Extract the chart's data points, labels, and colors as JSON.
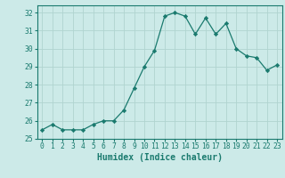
{
  "x": [
    0,
    1,
    2,
    3,
    4,
    5,
    6,
    7,
    8,
    9,
    10,
    11,
    12,
    13,
    14,
    15,
    16,
    17,
    18,
    19,
    20,
    21,
    22,
    23
  ],
  "y": [
    25.5,
    25.8,
    25.5,
    25.5,
    25.5,
    25.8,
    26.0,
    26.0,
    26.6,
    27.8,
    29.0,
    29.9,
    31.8,
    32.0,
    31.8,
    30.8,
    31.7,
    30.8,
    31.4,
    30.0,
    29.6,
    29.5,
    28.8,
    29.1
  ],
  "line_color": "#1a7a6e",
  "marker": "D",
  "marker_size": 2.2,
  "bg_color": "#cceae8",
  "grid_color": "#b0d4d0",
  "xlabel": "Humidex (Indice chaleur)",
  "ylim": [
    25,
    32.4
  ],
  "xlim": [
    -0.5,
    23.5
  ],
  "yticks": [
    25,
    26,
    27,
    28,
    29,
    30,
    31,
    32
  ],
  "xticks": [
    0,
    1,
    2,
    3,
    4,
    5,
    6,
    7,
    8,
    9,
    10,
    11,
    12,
    13,
    14,
    15,
    16,
    17,
    18,
    19,
    20,
    21,
    22,
    23
  ],
  "tick_label_fontsize": 5.8,
  "xlabel_fontsize": 7.0
}
